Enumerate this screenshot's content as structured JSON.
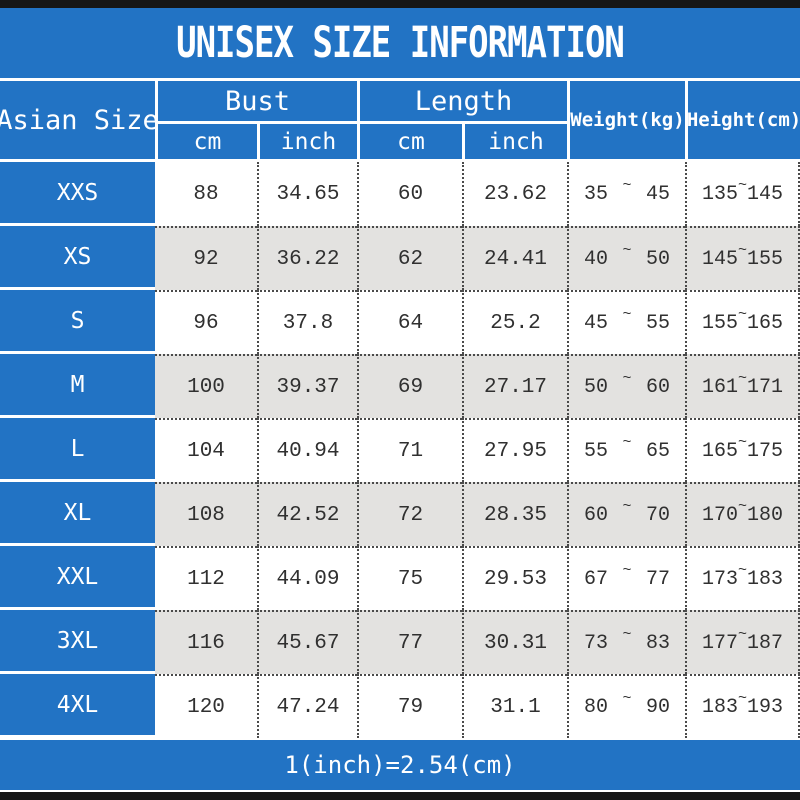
{
  "title": "UNISEX SIZE INFORMATION",
  "table": {
    "columns": {
      "size": "Asian Size",
      "groups": [
        {
          "label": "Bust",
          "subs": [
            "cm",
            "inch"
          ]
        },
        {
          "label": "Length",
          "subs": [
            "cm",
            "inch"
          ]
        }
      ],
      "weight": "Weight(kg)",
      "height": "Height(cm)"
    },
    "tilde": "~",
    "rows": [
      {
        "size": "XXS",
        "bust_cm": "88",
        "bust_inch": "34.65",
        "length_cm": "60",
        "length_inch": "23.62",
        "weight_min": "35",
        "weight_max": "45",
        "height_min": "135",
        "height_max": "145"
      },
      {
        "size": "XS",
        "bust_cm": "92",
        "bust_inch": "36.22",
        "length_cm": "62",
        "length_inch": "24.41",
        "weight_min": "40",
        "weight_max": "50",
        "height_min": "145",
        "height_max": "155"
      },
      {
        "size": "S",
        "bust_cm": "96",
        "bust_inch": "37.8",
        "length_cm": "64",
        "length_inch": "25.2",
        "weight_min": "45",
        "weight_max": "55",
        "height_min": "155",
        "height_max": "165"
      },
      {
        "size": "M",
        "bust_cm": "100",
        "bust_inch": "39.37",
        "length_cm": "69",
        "length_inch": "27.17",
        "weight_min": "50",
        "weight_max": "60",
        "height_min": "161",
        "height_max": "171"
      },
      {
        "size": "L",
        "bust_cm": "104",
        "bust_inch": "40.94",
        "length_cm": "71",
        "length_inch": "27.95",
        "weight_min": "55",
        "weight_max": "65",
        "height_min": "165",
        "height_max": "175"
      },
      {
        "size": "XL",
        "bust_cm": "108",
        "bust_inch": "42.52",
        "length_cm": "72",
        "length_inch": "28.35",
        "weight_min": "60",
        "weight_max": "70",
        "height_min": "170",
        "height_max": "180"
      },
      {
        "size": "XXL",
        "bust_cm": "112",
        "bust_inch": "44.09",
        "length_cm": "75",
        "length_inch": "29.53",
        "weight_min": "67",
        "weight_max": "77",
        "height_min": "173",
        "height_max": "183"
      },
      {
        "size": "3XL",
        "bust_cm": "116",
        "bust_inch": "45.67",
        "length_cm": "77",
        "length_inch": "30.31",
        "weight_min": "73",
        "weight_max": "83",
        "height_min": "177",
        "height_max": "187"
      },
      {
        "size": "4XL",
        "bust_cm": "120",
        "bust_inch": "47.24",
        "length_cm": "79",
        "length_inch": "31.1",
        "weight_min": "80",
        "weight_max": "90",
        "height_min": "183",
        "height_max": "193"
      }
    ]
  },
  "footer": {
    "note": "1(inch)=2.54(cm)"
  },
  "colors": {
    "blue": "#2273c4",
    "row_gray": "#e3e2e0",
    "bar_black": "#161616",
    "dotted_line": "#4a4a4a",
    "text": "#303030"
  }
}
